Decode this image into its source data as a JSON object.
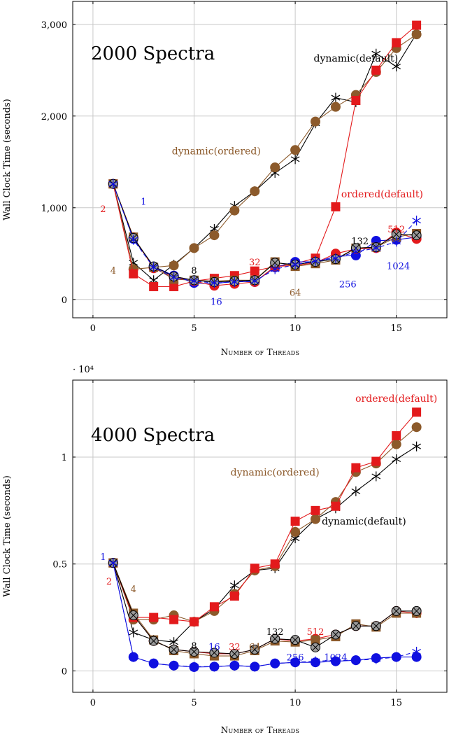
{
  "colors": {
    "red": "#e31a1c",
    "brown": "#8c5a2b",
    "black": "#000000",
    "blue": "#1010e0",
    "gray": "#9a9a9a"
  },
  "chart_data": [
    {
      "type": "line",
      "title": "2000 Spectra",
      "xlabel": "Number of Threads",
      "ylabel": "Wall Clock Time (seconds)",
      "xlim": [
        -1,
        17.5
      ],
      "ylim": [
        -200,
        3250
      ],
      "xticks": [
        0,
        5,
        10,
        15
      ],
      "xtick_labels": [
        "0",
        "5",
        "10",
        "15"
      ],
      "yticks": [
        0,
        1000,
        2000,
        3000
      ],
      "ytick_labels": [
        "0",
        "1,000",
        "2,000",
        "3,000"
      ],
      "grid": true,
      "x": [
        1,
        2,
        3,
        4,
        5,
        6,
        7,
        8,
        9,
        10,
        11,
        12,
        13,
        14,
        15,
        16
      ],
      "series": [
        {
          "key": "dyn_default",
          "color": "black",
          "marker": "star",
          "values": [
            1260,
            400,
            210,
            380,
            560,
            770,
            1020,
            1180,
            1380,
            1530,
            1920,
            2200,
            2150,
            2680,
            2540,
            2900
          ]
        },
        {
          "key": "dyn_ordered",
          "color": "brown",
          "marker": "circle",
          "values": [
            1260,
            330,
            350,
            370,
            560,
            700,
            970,
            1180,
            1440,
            1630,
            1940,
            2100,
            2230,
            2480,
            2740,
            2890
          ]
        },
        {
          "key": "ord_default",
          "color": "red",
          "marker": "square",
          "values": [
            1260,
            280,
            140,
            140,
            200,
            230,
            260,
            310,
            360,
            390,
            450,
            1010,
            2170,
            2500,
            2800,
            2990
          ]
        },
        {
          "key": "chunk_1",
          "color": "blue",
          "marker": "circle",
          "values": [
            1260,
            660,
            360,
            260,
            180,
            170,
            200,
            190,
            350,
            410,
            410,
            470,
            480,
            640,
            650,
            680
          ]
        },
        {
          "key": "chunk_2",
          "color": "red",
          "marker": "circle",
          "values": [
            1260,
            680,
            340,
            240,
            200,
            150,
            170,
            190,
            360,
            370,
            400,
            500,
            550,
            560,
            730,
            660
          ]
        },
        {
          "key": "chunk_4",
          "color": "brown",
          "marker": "square",
          "values": [
            1260,
            680,
            350,
            220,
            210,
            200,
            210,
            210,
            410,
            360,
            390,
            430,
            560,
            570,
            680,
            720
          ]
        },
        {
          "key": "chunk_132",
          "color": "gray",
          "marker": "xcircle",
          "values": [
            1260,
            670,
            360,
            250,
            210,
            190,
            200,
            210,
            400,
            380,
            410,
            440,
            560,
            570,
            710,
            700
          ]
        },
        {
          "key": "chunk_1024",
          "color": "blue",
          "marker": "star",
          "dashed": true,
          "values": [
            1260,
            650,
            350,
            240,
            200,
            180,
            190,
            200,
            330,
            380,
            420,
            450,
            520,
            560,
            630,
            860
          ]
        }
      ],
      "annotations": [
        {
          "text": "dynamic(default)",
          "x": 13.0,
          "y": 2630,
          "color": "black"
        },
        {
          "text": "dynamic(ordered)",
          "x": 6.1,
          "y": 1620,
          "color": "brown"
        },
        {
          "text": "ordered(default)",
          "x": 14.3,
          "y": 1150,
          "color": "red"
        },
        {
          "text": "1",
          "x": 2.5,
          "y": 1070,
          "color": "blue"
        },
        {
          "text": "2",
          "x": 0.5,
          "y": 990,
          "color": "red"
        },
        {
          "text": "4",
          "x": 1.0,
          "y": 320,
          "color": "brown"
        },
        {
          "text": "8",
          "x": 5.0,
          "y": 320,
          "color": "black"
        },
        {
          "text": "16",
          "x": 6.1,
          "y": -20,
          "color": "blue"
        },
        {
          "text": "32",
          "x": 8.0,
          "y": 410,
          "color": "red"
        },
        {
          "text": "64",
          "x": 10.0,
          "y": 80,
          "color": "brown"
        },
        {
          "text": "256",
          "x": 12.6,
          "y": 170,
          "color": "blue"
        },
        {
          "text": "132",
          "x": 13.2,
          "y": 640,
          "color": "black"
        },
        {
          "text": "512",
          "x": 15.0,
          "y": 770,
          "color": "red"
        },
        {
          "text": "1024",
          "x": 15.1,
          "y": 370,
          "color": "blue"
        }
      ]
    },
    {
      "type": "line",
      "title": "4000 Spectra",
      "xlabel": "Number of Threads",
      "ylabel": "Wall Clock Time (seconds)",
      "yscale_label": "· 10⁴",
      "xlim": [
        -1,
        17.5
      ],
      "ylim": [
        -1000,
        13600
      ],
      "xticks": [
        0,
        5,
        10,
        15
      ],
      "xtick_labels": [
        "0",
        "5",
        "10",
        "15"
      ],
      "yticks": [
        0,
        5000,
        10000
      ],
      "ytick_labels": [
        "0",
        "0.5",
        "1"
      ],
      "grid": true,
      "x": [
        1,
        2,
        3,
        4,
        5,
        6,
        7,
        8,
        9,
        10,
        11,
        12,
        13,
        14,
        15,
        16
      ],
      "series": [
        {
          "key": "dyn_default",
          "color": "black",
          "marker": "star",
          "values": [
            5050,
            1800,
            1450,
            1350,
            2300,
            2900,
            4000,
            4700,
            4800,
            6200,
            7100,
            7600,
            8400,
            9100,
            9900,
            10500
          ]
        },
        {
          "key": "dyn_ordered",
          "color": "brown",
          "marker": "circle",
          "values": [
            5050,
            2400,
            2400,
            2600,
            2300,
            2800,
            3600,
            4700,
            4900,
            6500,
            7100,
            7900,
            9300,
            9700,
            10600,
            11400
          ]
        },
        {
          "key": "ord_default",
          "color": "red",
          "marker": "square",
          "values": [
            5050,
            2500,
            2500,
            2400,
            2300,
            3000,
            3500,
            4800,
            5000,
            7000,
            7500,
            7700,
            9500,
            9800,
            11000,
            12100
          ]
        },
        {
          "key": "chunk_1",
          "color": "blue",
          "marker": "circle",
          "values": [
            5050,
            650,
            350,
            250,
            180,
            200,
            250,
            200,
            350,
            400,
            400,
            450,
            500,
            600,
            650,
            650
          ]
        },
        {
          "key": "chunk_2",
          "color": "red",
          "marker": "circle",
          "values": [
            5050,
            2600,
            1400,
            1000,
            900,
            800,
            800,
            1000,
            1500,
            1400,
            1500,
            1700,
            2100,
            2100,
            2800,
            2700
          ]
        },
        {
          "key": "chunk_4",
          "color": "brown",
          "marker": "square",
          "values": [
            5050,
            2700,
            1450,
            950,
            800,
            700,
            700,
            950,
            1400,
            1350,
            1450,
            1600,
            2200,
            2050,
            2700,
            2700
          ]
        },
        {
          "key": "chunk_132",
          "color": "gray",
          "marker": "xcircle",
          "values": [
            5050,
            2600,
            1400,
            1000,
            900,
            850,
            800,
            1000,
            1500,
            1450,
            1100,
            1700,
            2100,
            2100,
            2800,
            2800
          ]
        },
        {
          "key": "chunk_1024",
          "color": "blue",
          "marker": "star",
          "dashed": true,
          "values": [
            5050,
            650,
            350,
            250,
            200,
            200,
            250,
            200,
            350,
            400,
            450,
            500,
            500,
            550,
            650,
            900
          ]
        }
      ],
      "annotations": [
        {
          "text": "ordered(default)",
          "x": 15.0,
          "y": 12750,
          "color": "red"
        },
        {
          "text": "dynamic(ordered)",
          "x": 9.0,
          "y": 9300,
          "color": "brown"
        },
        {
          "text": "dynamic(default)",
          "x": 13.4,
          "y": 7000,
          "color": "black"
        },
        {
          "text": "1",
          "x": 0.5,
          "y": 5350,
          "color": "blue"
        },
        {
          "text": "2",
          "x": 0.8,
          "y": 4200,
          "color": "red"
        },
        {
          "text": "4",
          "x": 2.0,
          "y": 3850,
          "color": "brown"
        },
        {
          "text": "8",
          "x": 5.0,
          "y": 1200,
          "color": "black"
        },
        {
          "text": "16",
          "x": 6.0,
          "y": 1150,
          "color": "blue"
        },
        {
          "text": "32",
          "x": 7.0,
          "y": 1150,
          "color": "red"
        },
        {
          "text": "64",
          "x": 8.0,
          "y": 1150,
          "color": "brown"
        },
        {
          "text": "132",
          "x": 9.0,
          "y": 1850,
          "color": "black"
        },
        {
          "text": "256",
          "x": 10.0,
          "y": 650,
          "color": "blue"
        },
        {
          "text": "512",
          "x": 11.0,
          "y": 1850,
          "color": "red"
        },
        {
          "text": "1024",
          "x": 12.0,
          "y": 650,
          "color": "blue"
        }
      ]
    }
  ]
}
